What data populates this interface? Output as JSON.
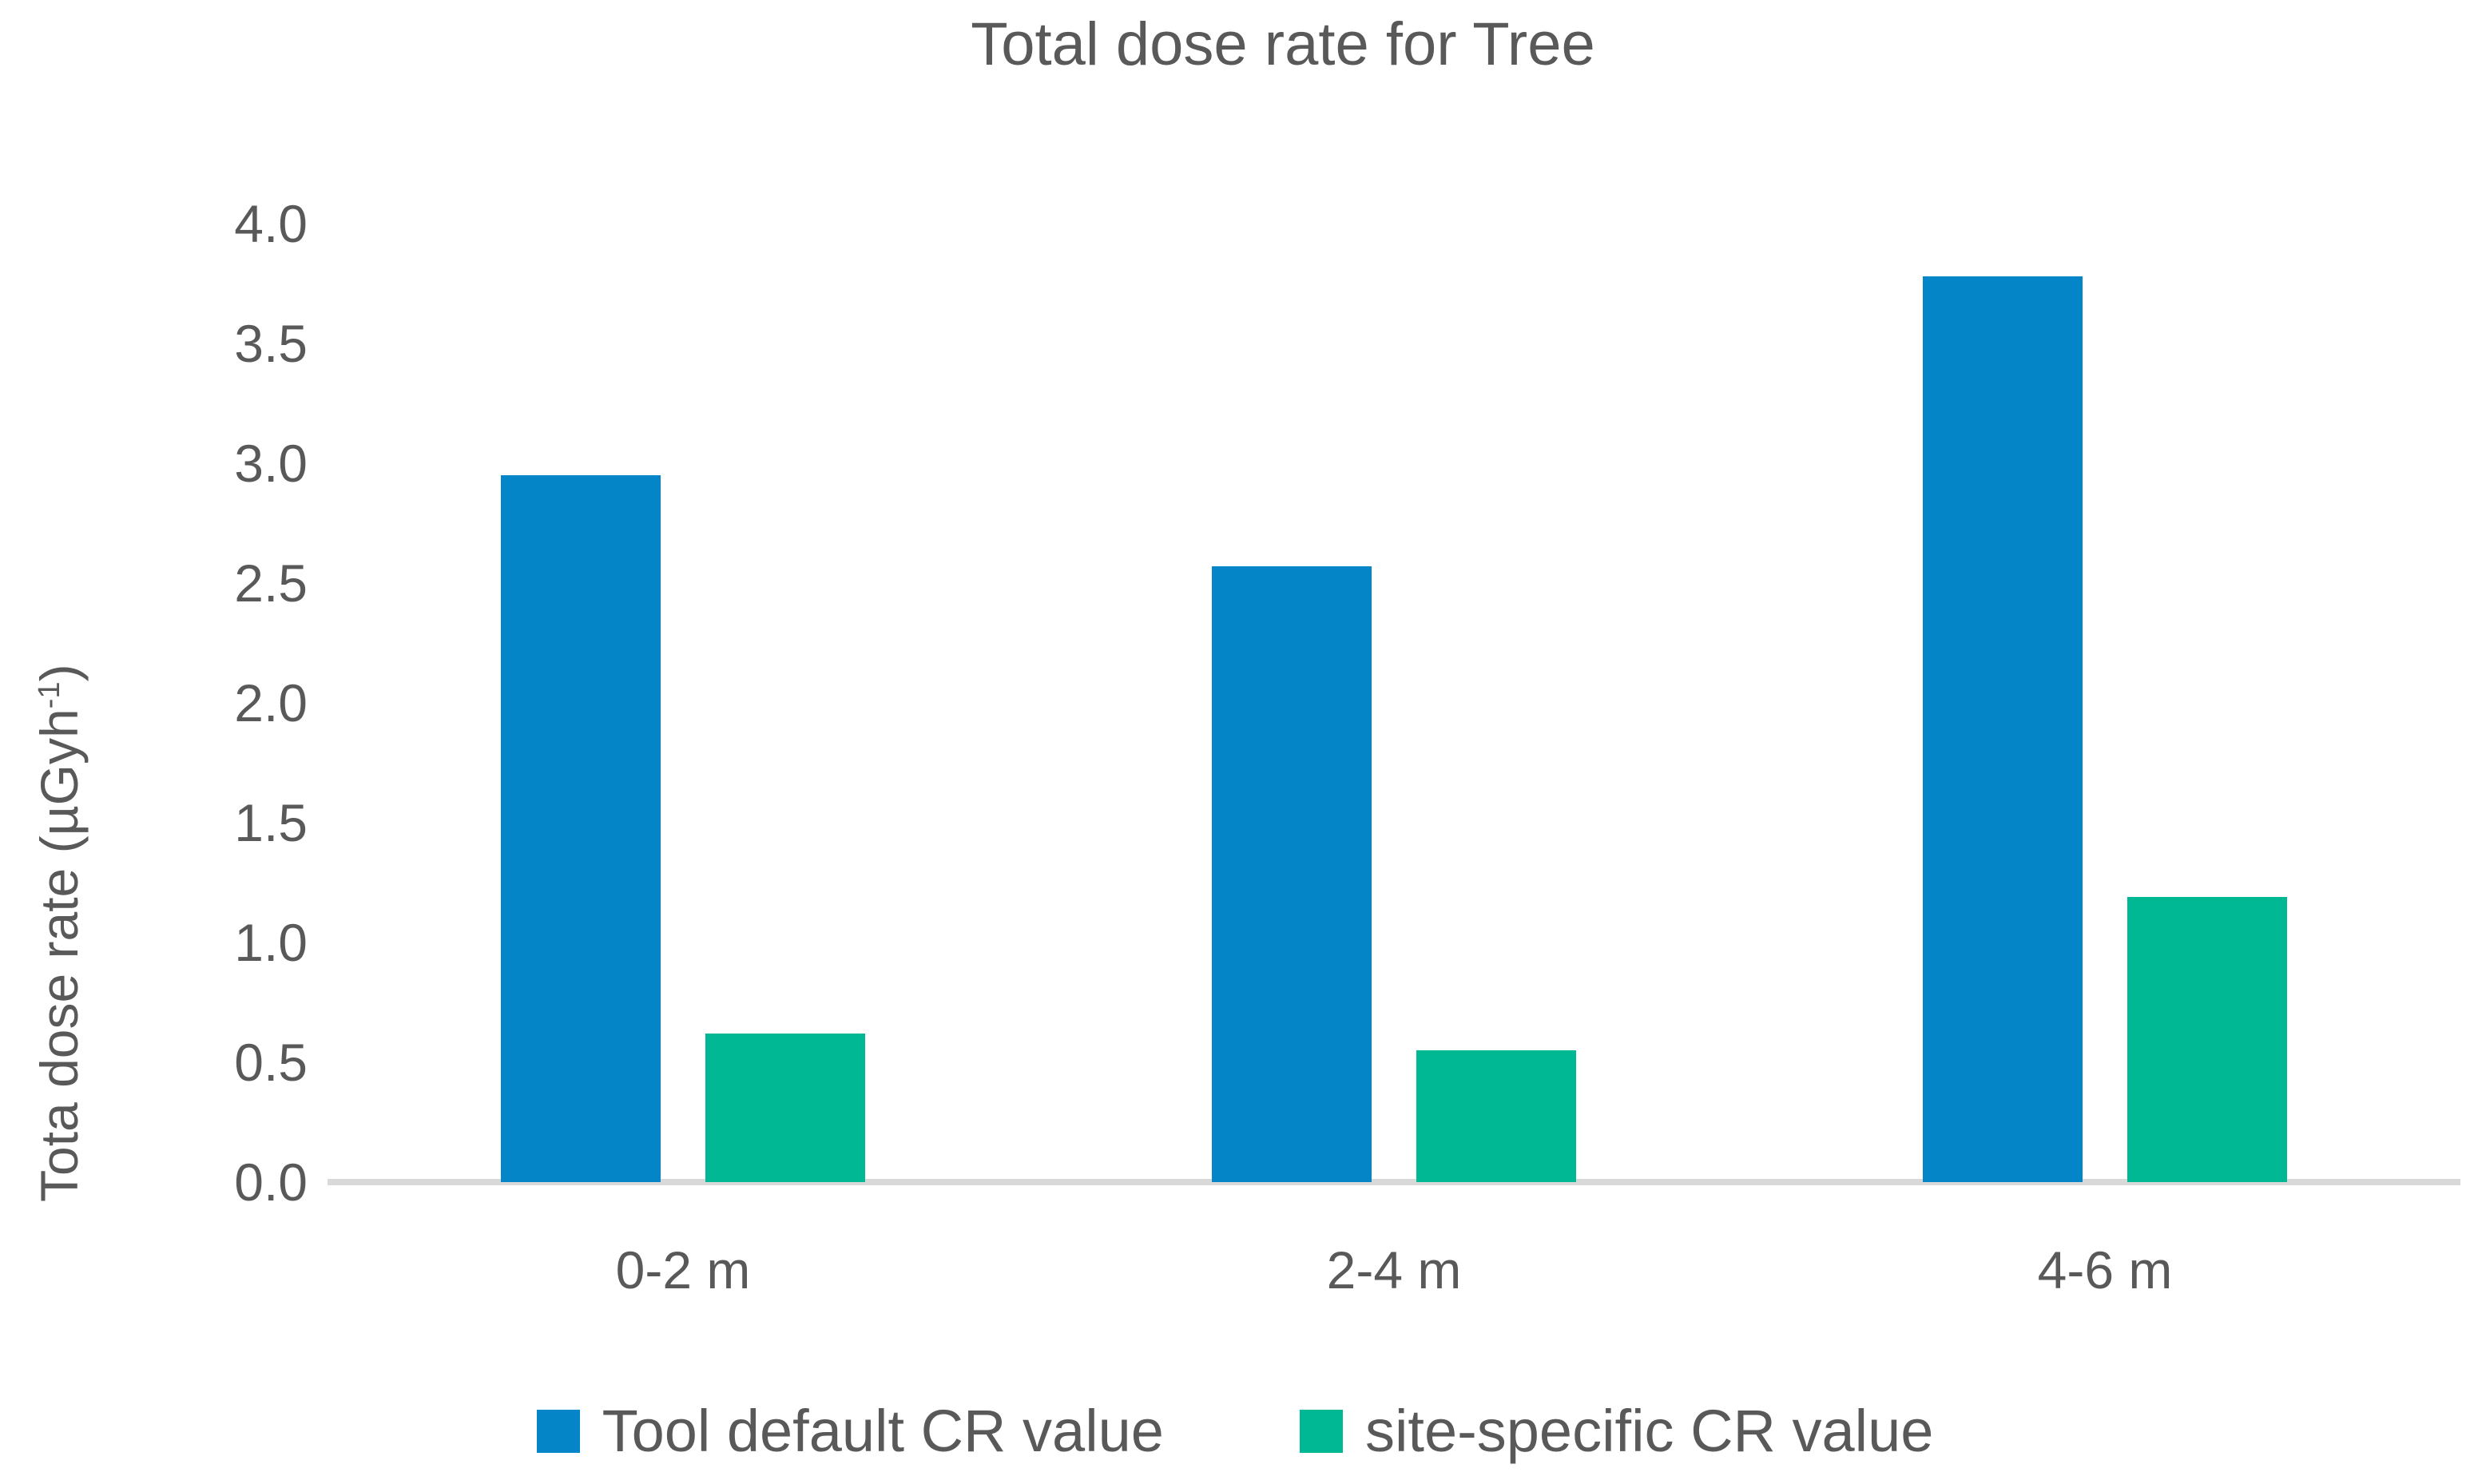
{
  "title": "Total dose rate for Tree",
  "labels": {
    "ylabel_main": "Tota dose rate (µGyh",
    "ylabel_sup": "-1",
    "ylabel_close": ")"
  },
  "colors": {
    "series_blue": "#0485C8",
    "series_green": "#00B894",
    "text_gray": "#595959",
    "axis_line": "#D9D9D9"
  },
  "chart_data": {
    "type": "bar",
    "title": "Total dose rate for Tree",
    "categories": [
      "0-2 m",
      "2-4 m",
      "4-6 m"
    ],
    "series": [
      {
        "name": "Tool default CR value",
        "color": "#0485C8",
        "values": [
          2.95,
          2.57,
          3.78
        ]
      },
      {
        "name": "site-specific CR value",
        "color": "#00B894",
        "values": [
          0.62,
          0.55,
          1.19
        ]
      }
    ],
    "xlabel": "",
    "ylabel": "Tota dose rate (µGyh⁻¹)",
    "ylim": [
      0.0,
      4.0
    ],
    "ytick_step": 0.5,
    "ytick_labels": [
      "0.0",
      "0.5",
      "1.0",
      "1.5",
      "2.0",
      "2.5",
      "3.0",
      "3.5",
      "4.0"
    ],
    "grid": false,
    "legend_position": "bottom"
  }
}
